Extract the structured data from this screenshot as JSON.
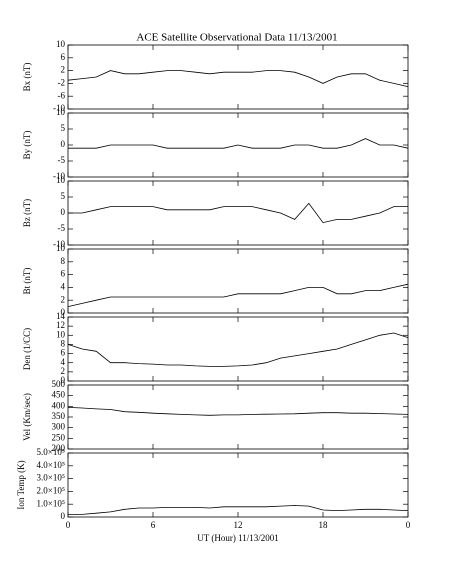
{
  "chart_data": [
    {
      "type": "line",
      "title": "ACE Satellite Observational Data   11/13/2001",
      "y_label": "Bx (nT)",
      "color": "#000000",
      "x": [
        0,
        1,
        2,
        3,
        4,
        5,
        6,
        7,
        8,
        9,
        10,
        11,
        12,
        13,
        14,
        15,
        16,
        17,
        18,
        19,
        20,
        21,
        22,
        23,
        24
      ],
      "values": [
        -1,
        -0.5,
        0,
        2,
        1,
        1,
        1.5,
        2,
        2,
        1.5,
        1,
        1.5,
        1.5,
        1.5,
        2,
        2,
        1.5,
        0,
        -2,
        0,
        1,
        1,
        -1,
        -2,
        -3
      ],
      "xlim": [
        0,
        24
      ],
      "ylim": [
        -10,
        10
      ],
      "yticks": [
        -10,
        -6,
        -2,
        2,
        6,
        10
      ]
    },
    {
      "type": "line",
      "y_label": "By (nT)",
      "color": "#000000",
      "x": [
        0,
        1,
        2,
        3,
        4,
        5,
        6,
        7,
        8,
        9,
        10,
        11,
        12,
        13,
        14,
        15,
        16,
        17,
        18,
        19,
        20,
        21,
        22,
        23,
        24
      ],
      "values": [
        -1,
        -1,
        -1,
        0,
        0,
        0,
        0,
        -1,
        -1,
        -1,
        -1,
        -1,
        0,
        -1,
        -1,
        -1,
        0,
        0,
        -1,
        -1,
        0,
        2,
        0,
        0,
        -1
      ],
      "xlim": [
        0,
        24
      ],
      "ylim": [
        -10,
        10
      ],
      "yticks": [
        -10,
        -5,
        0,
        5,
        10
      ]
    },
    {
      "type": "line",
      "y_label": "Bz (nT)",
      "color": "#000000",
      "x": [
        0,
        1,
        2,
        3,
        4,
        5,
        6,
        7,
        8,
        9,
        10,
        11,
        12,
        13,
        14,
        15,
        16,
        17,
        18,
        19,
        20,
        21,
        22,
        23,
        24
      ],
      "values": [
        0,
        0,
        1,
        2,
        2,
        2,
        2,
        1,
        1,
        1,
        1,
        2,
        2,
        2,
        1,
        0,
        -2,
        3,
        -3,
        -2,
        -2,
        -1,
        0,
        2,
        2
      ],
      "xlim": [
        0,
        24
      ],
      "ylim": [
        -10,
        10
      ],
      "yticks": [
        -10,
        -5,
        0,
        5,
        10
      ]
    },
    {
      "type": "line",
      "y_label": "Bt (nT)",
      "color": "#000000",
      "x": [
        0,
        1,
        2,
        3,
        4,
        5,
        6,
        7,
        8,
        9,
        10,
        11,
        12,
        13,
        14,
        15,
        16,
        17,
        18,
        19,
        20,
        21,
        22,
        23,
        24
      ],
      "values": [
        1,
        1.5,
        2,
        2.5,
        2.5,
        2.5,
        2.5,
        2.5,
        2.5,
        2.5,
        2.5,
        2.5,
        3,
        3,
        3,
        3,
        3.5,
        4,
        4,
        3,
        3,
        3.5,
        3.5,
        4,
        4.5
      ],
      "xlim": [
        0,
        24
      ],
      "ylim": [
        0,
        10
      ],
      "yticks": [
        0,
        2,
        4,
        6,
        8,
        10
      ]
    },
    {
      "type": "line",
      "y_label": "Den (1/CC)",
      "color": "#000000",
      "x": [
        0,
        1,
        2,
        3,
        4,
        5,
        6,
        7,
        8,
        9,
        10,
        11,
        12,
        13,
        14,
        15,
        16,
        17,
        18,
        19,
        20,
        21,
        22,
        23,
        24
      ],
      "values": [
        8,
        7,
        6.5,
        4,
        4,
        3.8,
        3.7,
        3.5,
        3.5,
        3.3,
        3.2,
        3.2,
        3.3,
        3.5,
        4,
        5,
        5.5,
        6,
        6.5,
        7,
        8,
        9,
        10,
        10.5,
        9.5
      ],
      "xlim": [
        0,
        24
      ],
      "ylim": [
        0,
        14
      ],
      "yticks": [
        0,
        2,
        4,
        6,
        8,
        10,
        12,
        14
      ]
    },
    {
      "type": "line",
      "y_label": "Vel (Km/sec)",
      "color": "#000000",
      "x": [
        0,
        1,
        2,
        3,
        4,
        5,
        6,
        7,
        8,
        9,
        10,
        11,
        12,
        13,
        14,
        15,
        16,
        17,
        18,
        19,
        20,
        21,
        22,
        23,
        24
      ],
      "values": [
        395,
        392,
        388,
        385,
        375,
        372,
        368,
        365,
        362,
        360,
        358,
        360,
        360,
        362,
        363,
        364,
        365,
        368,
        370,
        370,
        368,
        368,
        366,
        364,
        362
      ],
      "xlim": [
        0,
        24
      ],
      "ylim": [
        200,
        500
      ],
      "yticks": [
        200,
        250,
        300,
        350,
        400,
        450,
        500
      ]
    },
    {
      "type": "line",
      "y_label": "Ion Temp (K)",
      "x_label": "UT (Hour)  11/13/2001",
      "color": "#000000",
      "x": [
        0,
        1,
        2,
        3,
        4,
        5,
        6,
        7,
        8,
        9,
        10,
        11,
        12,
        13,
        14,
        15,
        16,
        17,
        18,
        19,
        20,
        21,
        22,
        23,
        24
      ],
      "values": [
        20000,
        20000,
        30000,
        40000,
        60000,
        70000,
        70000,
        75000,
        75000,
        75000,
        70000,
        80000,
        80000,
        80000,
        80000,
        85000,
        90000,
        85000,
        55000,
        50000,
        55000,
        60000,
        60000,
        55000,
        50000
      ],
      "xlim": [
        0,
        24
      ],
      "xticks": [
        0,
        6,
        12,
        18,
        {
          "value": 24,
          "label": "0"
        }
      ],
      "ylim": [
        0,
        500000
      ],
      "yticks": [
        0,
        {
          "value": 100000,
          "label": "1.0×10⁵"
        },
        {
          "value": 200000,
          "label": "2.0×10⁵"
        },
        {
          "value": 300000,
          "label": "3.0×10⁵"
        },
        {
          "value": 400000,
          "label": "4.0×10⁵"
        },
        {
          "value": 500000,
          "label": "5.0×10⁵"
        }
      ]
    }
  ]
}
